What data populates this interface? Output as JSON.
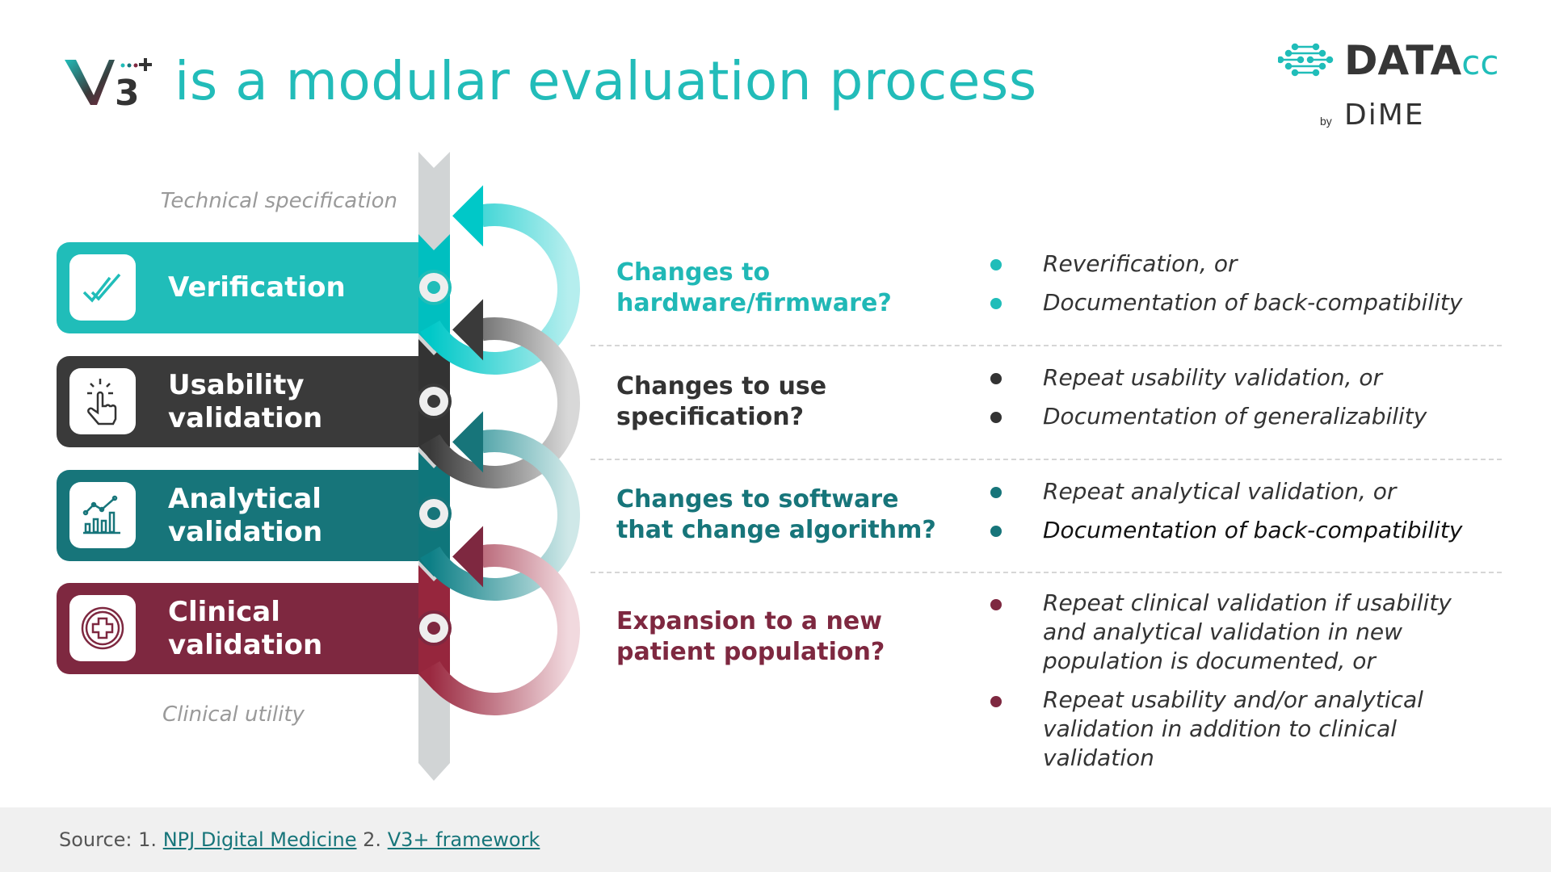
{
  "header": {
    "logo_v3": "V3+",
    "title": "is a modular evaluation process",
    "brand_logo": "DATAcc",
    "brand_by": "by",
    "brand_dime": "DiME"
  },
  "axis": {
    "top_label": "Technical specification",
    "bottom_label": "Clinical utility"
  },
  "colors": {
    "verification": "#20bdb9",
    "usability": "#3a3a3a",
    "analytical": "#17757a",
    "clinical": "#7e2840",
    "track": "#d1d4d5"
  },
  "steps": [
    {
      "label": "Verification",
      "icon": "double-check-icon"
    },
    {
      "label": "Usability validation",
      "icon": "hand-tap-icon"
    },
    {
      "label": "Analytical validation",
      "icon": "bar-chart-icon"
    },
    {
      "label": "Clinical validation",
      "icon": "medical-cross-icon"
    }
  ],
  "changes": [
    {
      "question": "Changes to hardware/firmware?",
      "bullets": [
        "Reverification, or",
        "Documentation of back-compatibility"
      ]
    },
    {
      "question": "Changes to use specification?",
      "bullets": [
        "Repeat usability validation, or",
        "Documentation of generalizability"
      ]
    },
    {
      "question": "Changes to software that change algorithm?",
      "bullets": [
        "Repeat analytical validation, or",
        "Documentation of back-compatibility"
      ]
    },
    {
      "question": "Expansion to a new patient population?",
      "bullets": [
        "Repeat clinical validation if usability and analytical validation in new population is documented, or",
        "Repeat usability and/or analytical validation in addition to clinical validation"
      ]
    }
  ],
  "footer": {
    "prefix": "Source: 1.",
    "link1": "NPJ Digital Medicine",
    "sep": "2.",
    "link2": "V3+ framework"
  }
}
